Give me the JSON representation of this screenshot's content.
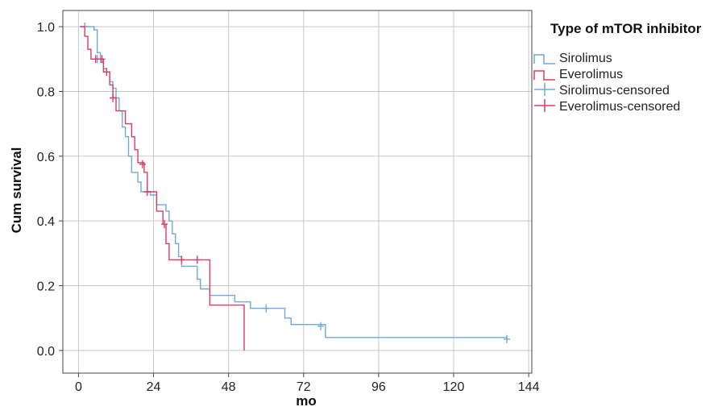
{
  "chart_data": {
    "type": "line",
    "subtype": "kaplan-meier",
    "xlabel": "mo",
    "ylabel": "Cum survival",
    "xlim": [
      -5,
      145
    ],
    "ylim": [
      -0.07,
      1.05
    ],
    "x_ticks": [
      0,
      24,
      48,
      72,
      96,
      120,
      144
    ],
    "y_ticks": [
      0.0,
      0.2,
      0.4,
      0.6,
      0.8,
      1.0
    ],
    "y_tick_labels": [
      "0.0",
      "0.2",
      "0.4",
      "0.6",
      "0.8",
      "1.0"
    ],
    "grid": true,
    "legend": {
      "title": "Type of mTOR inhibitor",
      "position": "right",
      "entries": [
        "Sirolimus",
        "Everolimus",
        "Sirolimus-censored",
        "Everolimus-censored"
      ]
    },
    "series": [
      {
        "name": "Sirolimus",
        "color": "#6fa8dc",
        "steps": [
          [
            0.5,
            1.0
          ],
          [
            5,
            0.99
          ],
          [
            6,
            0.92
          ],
          [
            7,
            0.89
          ],
          [
            8,
            0.87
          ],
          [
            9,
            0.86
          ],
          [
            10,
            0.83
          ],
          [
            11,
            0.81
          ],
          [
            12,
            0.78
          ],
          [
            13,
            0.74
          ],
          [
            14,
            0.69
          ],
          [
            15,
            0.66
          ],
          [
            16,
            0.6
          ],
          [
            17,
            0.55
          ],
          [
            19,
            0.52
          ],
          [
            20,
            0.49
          ],
          [
            22,
            0.49
          ],
          [
            23,
            0.48
          ],
          [
            25,
            0.45
          ],
          [
            28,
            0.43
          ],
          [
            29,
            0.4
          ],
          [
            30,
            0.36
          ],
          [
            31,
            0.33
          ],
          [
            32,
            0.29
          ],
          [
            33,
            0.26
          ],
          [
            38,
            0.22
          ],
          [
            39,
            0.19
          ],
          [
            42,
            0.17
          ],
          [
            48,
            0.17
          ],
          [
            50,
            0.15
          ],
          [
            55,
            0.13
          ],
          [
            66,
            0.1
          ],
          [
            68,
            0.08
          ],
          [
            78,
            0.08
          ],
          [
            79,
            0.04
          ],
          [
            137,
            0.04
          ]
        ],
        "censored": [
          [
            2,
            1.0
          ],
          [
            6,
            0.9
          ],
          [
            60,
            0.13
          ],
          [
            77.5,
            0.075
          ],
          [
            137,
            0.035
          ]
        ]
      },
      {
        "name": "Everolimus",
        "color": "#dd3b63",
        "steps": [
          [
            0.5,
            1.0
          ],
          [
            2,
            0.97
          ],
          [
            3,
            0.93
          ],
          [
            4,
            0.9
          ],
          [
            8,
            0.86
          ],
          [
            10,
            0.82
          ],
          [
            11,
            0.78
          ],
          [
            12,
            0.74
          ],
          [
            15,
            0.7
          ],
          [
            17,
            0.66
          ],
          [
            18,
            0.62
          ],
          [
            19,
            0.58
          ],
          [
            21,
            0.55
          ],
          [
            22,
            0.49
          ],
          [
            25,
            0.43
          ],
          [
            27,
            0.39
          ],
          [
            28,
            0.33
          ],
          [
            29,
            0.28
          ],
          [
            42,
            0.14
          ],
          [
            53,
            0.0
          ]
        ],
        "censored": [
          [
            5.5,
            0.9
          ],
          [
            7.5,
            0.9
          ],
          [
            9,
            0.86
          ],
          [
            11,
            0.78
          ],
          [
            20.5,
            0.575
          ],
          [
            22,
            0.49
          ],
          [
            27.5,
            0.39
          ],
          [
            33,
            0.28
          ],
          [
            38,
            0.28
          ]
        ]
      }
    ]
  }
}
